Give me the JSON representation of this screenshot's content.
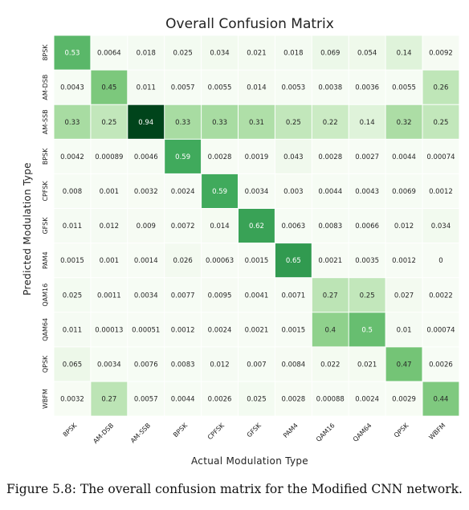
{
  "caption": "Figure 5.8: The overall confusion matrix for the Modified CNN network.",
  "chart_data": {
    "type": "heatmap",
    "title": "Overall Confusion Matrix",
    "xlabel": "Actual Modulation Type",
    "ylabel": "Predicted Modulation Type",
    "x_categories": [
      "8PSK",
      "AM-DSB",
      "AM-SSB",
      "BPSK",
      "CPFSK",
      "GFSK",
      "PAM4",
      "QAM16",
      "QAM64",
      "QPSK",
      "WBFM"
    ],
    "y_categories": [
      "8PSK",
      "AM-DSB",
      "AM-SSB",
      "BPSK",
      "CPFSK",
      "GFSK",
      "PAM4",
      "QAM16",
      "QAM64",
      "QPSK",
      "WBFM"
    ],
    "values": [
      [
        "0.53",
        "0.0064",
        "0.018",
        "0.025",
        "0.034",
        "0.021",
        "0.018",
        "0.069",
        "0.054",
        "0.14",
        "0.0092"
      ],
      [
        "0.0043",
        "0.45",
        "0.011",
        "0.0057",
        "0.0055",
        "0.014",
        "0.0053",
        "0.0038",
        "0.0036",
        "0.0055",
        "0.26"
      ],
      [
        "0.33",
        "0.25",
        "0.94",
        "0.33",
        "0.33",
        "0.31",
        "0.25",
        "0.22",
        "0.14",
        "0.32",
        "0.25"
      ],
      [
        "0.0042",
        "0.00089",
        "0.0046",
        "0.59",
        "0.0028",
        "0.0019",
        "0.043",
        "0.0028",
        "0.0027",
        "0.0044",
        "0.00074"
      ],
      [
        "0.008",
        "0.001",
        "0.0032",
        "0.0024",
        "0.59",
        "0.0034",
        "0.003",
        "0.0044",
        "0.0043",
        "0.0069",
        "0.0012"
      ],
      [
        "0.011",
        "0.012",
        "0.009",
        "0.0072",
        "0.014",
        "0.62",
        "0.0063",
        "0.0083",
        "0.0066",
        "0.012",
        "0.034"
      ],
      [
        "0.0015",
        "0.001",
        "0.0014",
        "0.026",
        "0.00063",
        "0.0015",
        "0.65",
        "0.0021",
        "0.0035",
        "0.0012",
        "0"
      ],
      [
        "0.025",
        "0.0011",
        "0.0034",
        "0.0077",
        "0.0095",
        "0.0041",
        "0.0071",
        "0.27",
        "0.25",
        "0.027",
        "0.0022"
      ],
      [
        "0.011",
        "0.00013",
        "0.00051",
        "0.0012",
        "0.0024",
        "0.0021",
        "0.0015",
        "0.4",
        "0.5",
        "0.01",
        "0.00074"
      ],
      [
        "0.065",
        "0.0034",
        "0.0076",
        "0.0083",
        "0.012",
        "0.007",
        "0.0084",
        "0.022",
        "0.021",
        "0.47",
        "0.0026"
      ],
      [
        "0.0032",
        "0.27",
        "0.0057",
        "0.0044",
        "0.0026",
        "0.025",
        "0.0028",
        "0.00088",
        "0.0024",
        "0.0029",
        "0.44"
      ]
    ],
    "colormap": "Greens",
    "vmin": 0,
    "vmax": 0.94,
    "colors": {
      "low": "#f7fcf5",
      "high": "#00441b"
    }
  }
}
